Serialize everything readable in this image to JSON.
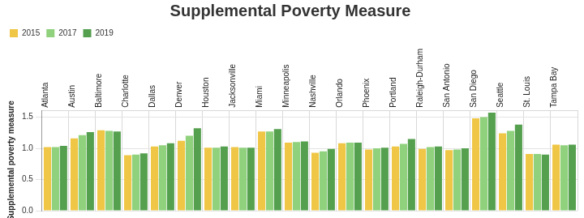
{
  "chart_data": {
    "type": "bar",
    "title": "Supplemental Poverty Measure",
    "y_label": "Supplemental poverty measure",
    "categories": [
      "Atlanta",
      "Austin",
      "Baltimore",
      "Charlotte",
      "Dallas",
      "Denver",
      "Houston",
      "Jacksonville",
      "Miami",
      "Minneapolis",
      "Nashville",
      "Orlando",
      "Phoenix",
      "Portland",
      "Raleigh-Durham",
      "San Antonio",
      "San Diego",
      "Seattle",
      "St. Louis",
      "Tampa Bay"
    ],
    "series": [
      {
        "name": "2015",
        "color": "#f0c646",
        "values": [
          1.02,
          1.16,
          1.29,
          0.89,
          1.03,
          1.12,
          1.01,
          1.02,
          1.27,
          1.09,
          0.93,
          1.08,
          0.98,
          1.03,
          0.99,
          0.97,
          1.48,
          1.24,
          0.91,
          1.06
        ]
      },
      {
        "name": "2017",
        "color": "#8fd17c",
        "values": [
          1.02,
          1.21,
          1.28,
          0.9,
          1.05,
          1.2,
          1.01,
          1.01,
          1.27,
          1.1,
          0.95,
          1.09,
          1.0,
          1.07,
          1.02,
          0.98,
          1.5,
          1.28,
          0.91,
          1.05
        ]
      },
      {
        "name": "2019",
        "color": "#55a04f",
        "values": [
          1.04,
          1.26,
          1.27,
          0.92,
          1.08,
          1.32,
          1.03,
          1.01,
          1.31,
          1.11,
          0.99,
          1.09,
          1.01,
          1.15,
          1.03,
          1.0,
          1.57,
          1.38,
          0.9,
          1.06
        ]
      }
    ],
    "ylim": [
      0,
      1.6
    ],
    "yticks": [
      {
        "value": 0,
        "label": "0.0"
      },
      0.5,
      {
        "value": 1,
        "label": "1.0"
      },
      1.5
    ],
    "grid": true,
    "legend": "top-left"
  }
}
